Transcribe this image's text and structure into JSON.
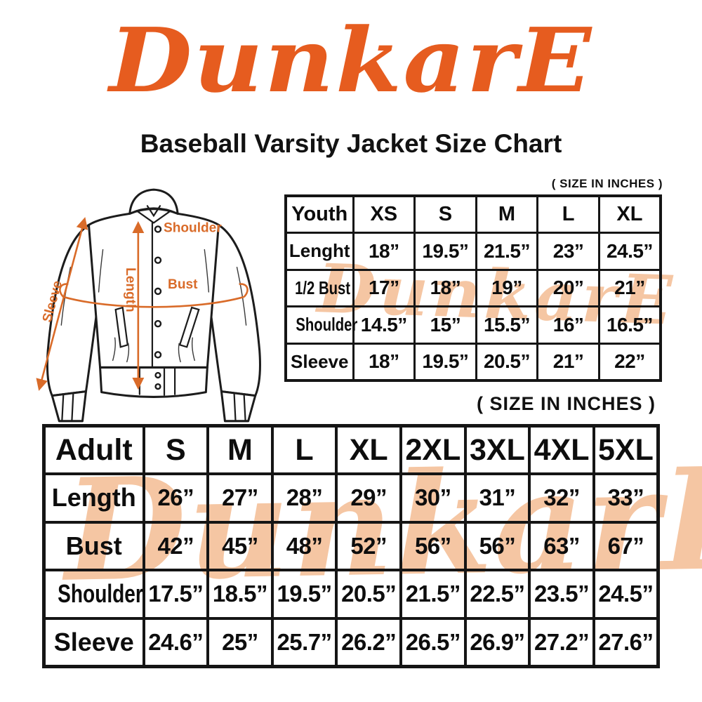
{
  "brand": {
    "logo_text": "DunkarE"
  },
  "header": {
    "title": "Baseball Varsity Jacket Size Chart"
  },
  "watermark": {
    "text": "DunkarE"
  },
  "colors": {
    "logo_orange": "#E65C1F",
    "annotation_orange": "#D96B29",
    "watermark_peach": "#F5C6A3",
    "table_border": "#151515"
  },
  "jacket_diagram": {
    "shoulder_label": "Shoulder",
    "length_label": "Length",
    "bust_label": "Bust",
    "sleeve_label": "Sleeve"
  },
  "youth_section": {
    "size_note": "( SIZE IN INCHES )",
    "table": {
      "header": [
        "Youth",
        "XS",
        "S",
        "M",
        "L",
        "XL"
      ],
      "rows": [
        {
          "label": "Lenght",
          "values": [
            "18”",
            "19.5”",
            "21.5”",
            "23”",
            "24.5”"
          ]
        },
        {
          "label": "1/2 Bust",
          "values": [
            "17”",
            "18”",
            "19”",
            "20”",
            "21”"
          ]
        },
        {
          "label": "Shoulder",
          "values": [
            "14.5”",
            "15”",
            "15.5”",
            "16”",
            "16.5”"
          ]
        },
        {
          "label": "Sleeve",
          "values": [
            "18”",
            "19.5”",
            "20.5”",
            "21”",
            "22”"
          ]
        }
      ]
    }
  },
  "adult_section": {
    "size_note": "( SIZE IN INCHES )",
    "table": {
      "header": [
        "Adult",
        "S",
        "M",
        "L",
        "XL",
        "2XL",
        "3XL",
        "4XL",
        "5XL"
      ],
      "rows": [
        {
          "label": "Length",
          "values": [
            "26”",
            "27”",
            "28”",
            "29”",
            "30”",
            "31”",
            "32”",
            "33”"
          ]
        },
        {
          "label": "Bust",
          "values": [
            "42”",
            "45”",
            "48”",
            "52”",
            "56”",
            "56”",
            "63”",
            "67”"
          ]
        },
        {
          "label": "Shoulder",
          "values": [
            "17.5”",
            "18.5”",
            "19.5”",
            "20.5”",
            "21.5”",
            "22.5”",
            "23.5”",
            "24.5”"
          ]
        },
        {
          "label": "Sleeve",
          "values": [
            "24.6”",
            "25”",
            "25.7”",
            "26.2”",
            "26.5”",
            "26.9”",
            "27.2”",
            "27.6”"
          ]
        }
      ]
    }
  }
}
